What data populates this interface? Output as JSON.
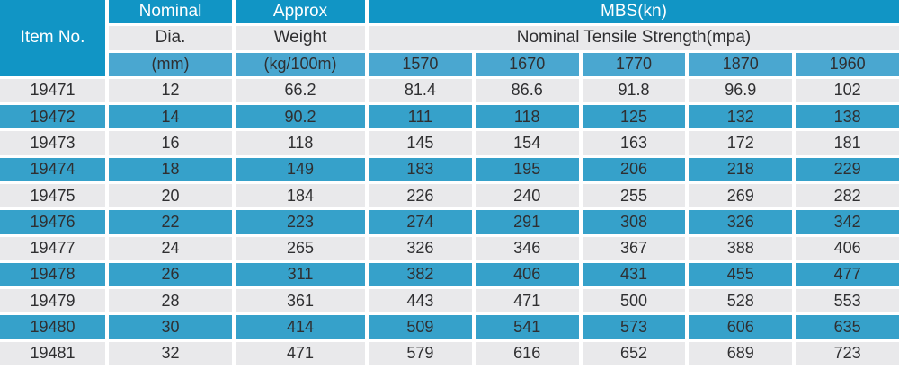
{
  "colors": {
    "header_teal": "#1195c5",
    "subheader_blue": "#4aa7d0",
    "row_blue": "#36a1ca",
    "row_gray": "#e9e9eb",
    "header_text": "#ffffff",
    "body_text": "#2f2f31"
  },
  "chart_data": {
    "type": "table",
    "title": "",
    "header": {
      "item_no": "Item No.",
      "nominal": [
        "Nominal",
        "Dia.",
        "(mm)"
      ],
      "approx": [
        "Approx",
        "Weight",
        "(kg/100m)"
      ],
      "mbs_group": "MBS(kn)",
      "mbs_subgroup": "Nominal Tensile Strength(mpa)",
      "strength_grades": [
        "1570",
        "1670",
        "1770",
        "1870",
        "1960"
      ]
    },
    "rows": [
      {
        "item_no": "19471",
        "dia_mm": "12",
        "weight_kg_100m": "66.2",
        "mbs_kn": [
          "81.4",
          "86.6",
          "91.8",
          "96.9",
          "102"
        ]
      },
      {
        "item_no": "19472",
        "dia_mm": "14",
        "weight_kg_100m": "90.2",
        "mbs_kn": [
          "111",
          "118",
          "125",
          "132",
          "138"
        ]
      },
      {
        "item_no": "19473",
        "dia_mm": "16",
        "weight_kg_100m": "118",
        "mbs_kn": [
          "145",
          "154",
          "163",
          "172",
          "181"
        ]
      },
      {
        "item_no": "19474",
        "dia_mm": "18",
        "weight_kg_100m": "149",
        "mbs_kn": [
          "183",
          "195",
          "206",
          "218",
          "229"
        ]
      },
      {
        "item_no": "19475",
        "dia_mm": "20",
        "weight_kg_100m": "184",
        "mbs_kn": [
          "226",
          "240",
          "255",
          "269",
          "282"
        ]
      },
      {
        "item_no": "19476",
        "dia_mm": "22",
        "weight_kg_100m": "223",
        "mbs_kn": [
          "274",
          "291",
          "308",
          "326",
          "342"
        ]
      },
      {
        "item_no": "19477",
        "dia_mm": "24",
        "weight_kg_100m": "265",
        "mbs_kn": [
          "326",
          "346",
          "367",
          "388",
          "406"
        ]
      },
      {
        "item_no": "19478",
        "dia_mm": "26",
        "weight_kg_100m": "311",
        "mbs_kn": [
          "382",
          "406",
          "431",
          "455",
          "477"
        ]
      },
      {
        "item_no": "19479",
        "dia_mm": "28",
        "weight_kg_100m": "361",
        "mbs_kn": [
          "443",
          "471",
          "500",
          "528",
          "553"
        ]
      },
      {
        "item_no": "19480",
        "dia_mm": "30",
        "weight_kg_100m": "414",
        "mbs_kn": [
          "509",
          "541",
          "573",
          "606",
          "635"
        ]
      },
      {
        "item_no": "19481",
        "dia_mm": "32",
        "weight_kg_100m": "471",
        "mbs_kn": [
          "579",
          "616",
          "652",
          "689",
          "723"
        ]
      }
    ]
  }
}
